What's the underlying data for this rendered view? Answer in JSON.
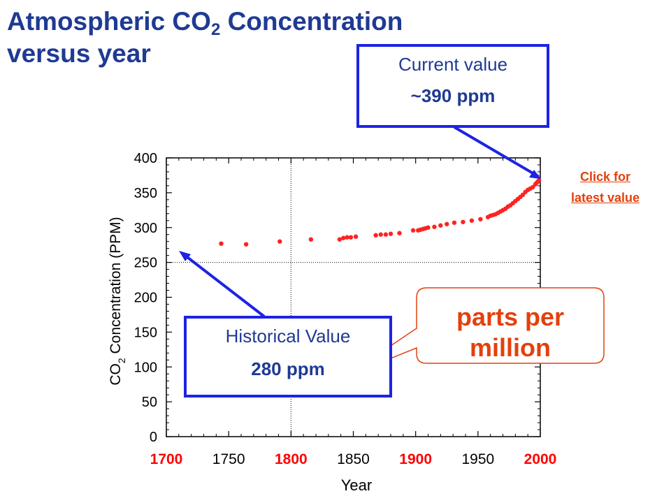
{
  "title": {
    "line1": "Atmospheric CO",
    "subscript": "2",
    "line1_rest": " Concentration",
    "line2": "versus year"
  },
  "current_callout": {
    "label": "Current value",
    "value": "~390 ppm"
  },
  "historical_callout": {
    "label": "Historical Value",
    "value": "280 ppm"
  },
  "ppm_note": {
    "line1": "parts per",
    "line2": "million"
  },
  "latest_link": {
    "line1": "Click for",
    "line2": "latest value"
  },
  "colors": {
    "title_blue": "#1f3a93",
    "callout_border": "#1d23e3",
    "accent_orange": "#e4400c",
    "point_red": "#ff2222",
    "tick_red": "#ff0000"
  },
  "chart_data": {
    "type": "scatter",
    "xlabel": "Year",
    "ylabel_parts": {
      "pre": "CO",
      "sub": "2",
      "post": " Concentration (PPM)"
    },
    "xlim": [
      1700,
      2000
    ],
    "ylim": [
      0,
      400
    ],
    "xticks": [
      "1700",
      "1750",
      "1800",
      "1850",
      "1900",
      "1950",
      "2000"
    ],
    "xticks_red": [
      "1700",
      "1800",
      "1900",
      "2000"
    ],
    "yticks": [
      "0",
      "50",
      "100",
      "150",
      "200",
      "250",
      "300",
      "350",
      "400"
    ],
    "grid_lines": {
      "x": [
        1800
      ],
      "y": [
        250
      ]
    },
    "series": [
      {
        "x": [
          1744,
          1764,
          1791,
          1816,
          1839,
          1842,
          1845,
          1848,
          1852,
          1868,
          1872,
          1876,
          1880,
          1887,
          1898,
          1902,
          1904,
          1906,
          1908,
          1910,
          1915,
          1920,
          1925,
          1931,
          1938,
          1945,
          1952,
          1958,
          1960,
          1962,
          1964,
          1966,
          1968,
          1970,
          1972,
          1974,
          1976,
          1978,
          1980,
          1982,
          1984,
          1986,
          1988,
          1990,
          1992,
          1994,
          1996,
          1997,
          1998,
          1999
        ],
        "y": [
          277,
          276,
          280,
          283,
          283,
          285,
          286,
          286,
          287,
          289,
          290,
          290,
          291,
          292,
          296,
          296,
          297,
          298,
          299,
          300,
          301,
          303,
          305,
          307,
          308,
          310,
          312,
          315,
          317,
          318,
          319,
          321,
          323,
          325,
          327,
          330,
          332,
          335,
          338,
          341,
          344,
          347,
          351,
          354,
          356,
          358,
          362,
          364,
          366,
          368
        ]
      }
    ]
  }
}
